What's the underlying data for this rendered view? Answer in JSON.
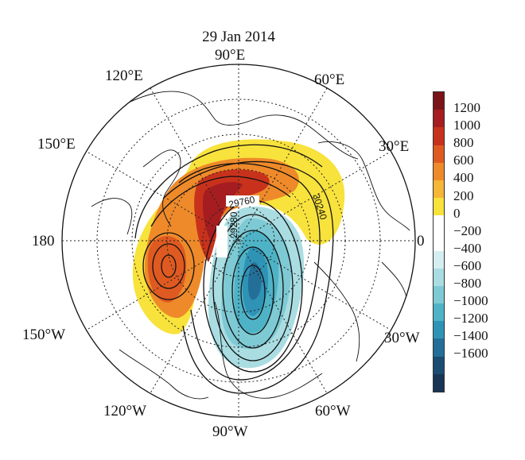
{
  "title": "29 Jan 2014",
  "longitude_labels": {
    "e90": "90°E",
    "e120": "120°E",
    "e60": "60°E",
    "e150": "150°E",
    "e30": "30°E",
    "d180": "180",
    "d0": "0",
    "w150": "150°W",
    "w30": "30°W",
    "w120": "120°W",
    "w60": "60°W",
    "w90": "90°W"
  },
  "contour_labels": [
    "29760",
    "29280",
    "30240"
  ],
  "colorbar": {
    "ticks": [
      "1200",
      "1000",
      "800",
      "600",
      "400",
      "200",
      "0",
      "−200",
      "−400",
      "−600",
      "−800",
      "−1000",
      "−1200",
      "−1400",
      "−1600"
    ],
    "colors": [
      "#7a1418",
      "#a51d20",
      "#c8321c",
      "#df5a21",
      "#ee8a2a",
      "#f6b638",
      "#f8e23c",
      "#ffffff",
      "#ffffff",
      "#d5eef0",
      "#a9dde2",
      "#7ecad4",
      "#4fb3c7",
      "#2f93b6",
      "#246f98",
      "#1b4c72",
      "#183555"
    ]
  }
}
